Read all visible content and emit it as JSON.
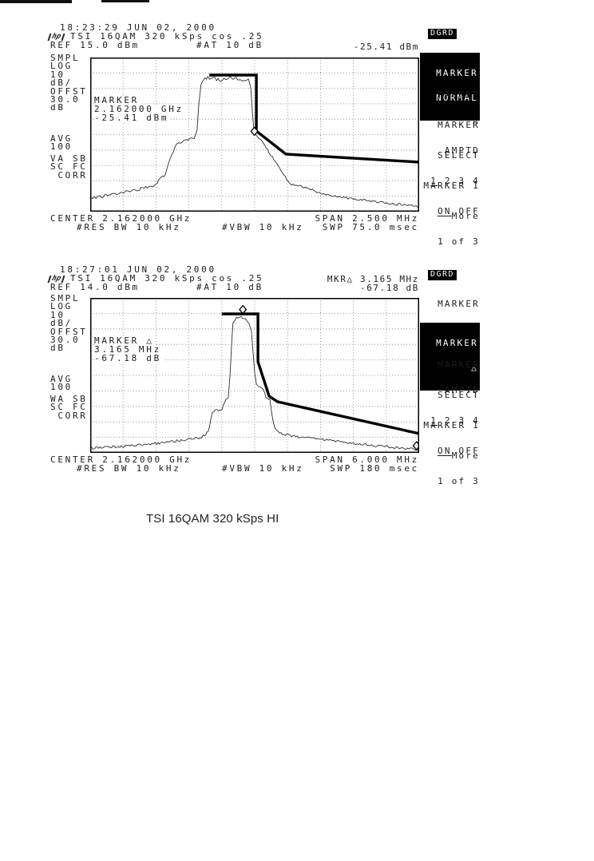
{
  "page": {
    "caption": "TSI 16QAM 320 kSps HI"
  },
  "icons": {
    "hp_logo": "hp"
  },
  "softkeys": {
    "dgrd": "DGRD",
    "k1_l1": "MARKER",
    "k1_l2": "NORMAL",
    "k2_l1": "MARKER",
    "k2_l2": "△",
    "k3_l1": "MARKER",
    "k3_l2": "AMPTD",
    "k4_l1": "SELECT",
    "k4_l2_u": "1",
    "k4_l2_r": " 2 3 4",
    "k5_l1": "MARKER 1",
    "k5_l2_u": "ON",
    "k5_l2_r": " OFF",
    "k6_l1": "More",
    "k6_l2": "1 of 3"
  },
  "charts": [
    {
      "timestamp": "18:23:29 JUN 02, 2000",
      "title": "TSI 16QAM 320 kSps cos .25",
      "ref": "REF 15.0 dBm",
      "atten": "#AT 10 dB",
      "readout1": "-25.41 dBm",
      "left_labels": {
        "g1": [
          "SMPL",
          "LOG",
          "10",
          "dB/",
          "OFFST",
          "30.0",
          "dB"
        ],
        "g2": [
          "AVG",
          "100"
        ],
        "g3": [
          "VA SB",
          "SC FC",
          " CORR"
        ]
      },
      "marker_box": [
        "MARKER",
        "2.162000 GHz",
        "-25.41 dBm"
      ],
      "footer": {
        "center": "CENTER 2.162000 GHz",
        "span": "SPAN 2.500 MHz",
        "res_bw": "#RES BW 10 kHz",
        "vbw": "#VBW 10 kHz",
        "sweep": "SWP 75.0 msec"
      }
    },
    {
      "timestamp": "18:27:01 JUN 02, 2000",
      "title": "TSI 16QAM 320 kSps cos .25",
      "ref": "REF 14.0 dBm",
      "atten": "#AT 10 dB",
      "readout1": "MKR△ 3.165 MHz",
      "readout2": "-67.18 dB",
      "left_labels": {
        "g1": [
          "SMPL",
          "LOG",
          "10",
          "dB/",
          "OFFST",
          "30.0",
          "dB"
        ],
        "g2": [
          "AVG",
          "100"
        ],
        "g3": [
          "WA SB",
          "SC FC",
          " CORR"
        ]
      },
      "marker_box": [
        "MARKER △",
        "3.165 MHz",
        "-67.18 dB"
      ],
      "footer": {
        "center": "CENTER 2.162000 GHz",
        "span": "SPAN 6.000 MHz",
        "res_bw": "#RES BW 10 kHz",
        "vbw": "#VBW 10 kHz",
        "sweep": "SWP 180 msec"
      }
    }
  ],
  "chart_data": [
    {
      "type": "line",
      "title": "TSI 16QAM 320 kSps cos .25",
      "timestamp": "18:23:29 JUN 02, 2000",
      "x_axis": {
        "center_freq": "2.162000 GHz",
        "span": "2.500 MHz",
        "res_bw": "10 kHz",
        "vbw": "10 kHz",
        "sweep": "75.0 msec"
      },
      "y_axis": {
        "ref_level_dbm": 15.0,
        "db_per_div": 10,
        "offset_db": 30.0,
        "divisions": 10
      },
      "marker": {
        "freq": "2.162000 GHz",
        "amplitude_dbm": -25.41
      },
      "grid_divs": [
        10,
        10
      ],
      "trace_pct": [
        [
          0,
          91.7,
          2
        ],
        [
          7,
          88.6,
          2
        ],
        [
          15,
          85.5,
          2
        ],
        [
          20,
          82.4,
          2
        ],
        [
          21.6,
          77.7,
          1.5
        ],
        [
          22.8,
          76.2,
          1.5
        ],
        [
          23.8,
          68.9,
          1
        ],
        [
          24.8,
          63.2,
          1.5
        ],
        [
          26.5,
          55.4,
          1.5
        ],
        [
          28.4,
          54.4,
          1.5
        ],
        [
          31.6,
          52.3,
          1.5
        ],
        [
          32.5,
          46.6,
          1
        ],
        [
          33,
          30.1,
          0.7
        ],
        [
          33.7,
          17.6,
          0.7
        ],
        [
          34.5,
          14,
          1.5
        ],
        [
          36.2,
          13,
          2.2
        ],
        [
          39.3,
          14.5,
          2.2
        ],
        [
          43,
          13,
          2.2
        ],
        [
          46.6,
          14.5,
          2.2
        ],
        [
          48.1,
          14,
          1.2
        ],
        [
          48.8,
          19.7,
          0.7
        ],
        [
          49.3,
          35.2,
          0.7
        ],
        [
          49.8,
          48.2,
          0.7
        ],
        [
          50.7,
          51.3,
          1
        ],
        [
          52.2,
          54.4,
          1
        ],
        [
          53.4,
          58.5,
          1
        ],
        [
          54.9,
          63.2,
          1
        ],
        [
          56.3,
          67.4,
          1
        ],
        [
          58,
          73.1,
          1
        ],
        [
          59.7,
          78.8,
          1.2
        ],
        [
          61.2,
          82.4,
          1.3
        ],
        [
          63.6,
          83.4,
          1.5
        ],
        [
          65,
          83.9,
          1.5
        ],
        [
          69.7,
          88.1,
          1.5
        ],
        [
          74.5,
          90.2,
          1.5
        ],
        [
          81.8,
          92.2,
          1.5
        ],
        [
          89.3,
          94.3,
          1.5
        ],
        [
          96.4,
          95.9,
          1.5
        ],
        [
          100,
          96.9,
          1.5
        ]
      ],
      "limit_line_pct": [
        [
          36.2,
          11.4
        ],
        [
          50.5,
          11.4
        ],
        [
          50.5,
          47.7
        ],
        [
          59.5,
          62.7
        ],
        [
          100,
          67.9
        ]
      ],
      "marker_points_pct": [
        [
          49.9,
          47.9
        ]
      ]
    },
    {
      "type": "line",
      "title": "TSI 16QAM 320 kSps cos .25",
      "timestamp": "18:27:01 JUN 02, 2000",
      "x_axis": {
        "center_freq": "2.162000 GHz",
        "span": "6.000 MHz",
        "res_bw": "10 kHz",
        "vbw": "10 kHz",
        "sweep": "180 msec"
      },
      "y_axis": {
        "ref_level_dbm": 14.0,
        "db_per_div": 10,
        "offset_db": 30.0,
        "divisions": 10
      },
      "marker_delta": {
        "freq": "3.165 MHz",
        "amplitude_db": -67.18
      },
      "grid_divs": [
        10,
        10
      ],
      "trace_pct": [
        [
          0,
          96.9,
          1.5
        ],
        [
          9,
          95.9,
          1.5
        ],
        [
          21,
          93.8,
          1.5
        ],
        [
          30.8,
          91.2,
          1.8
        ],
        [
          34.7,
          89.2,
          1.8
        ],
        [
          35.9,
          86.1,
          1
        ],
        [
          36.7,
          78.4,
          1
        ],
        [
          37.1,
          74.2,
          1.2
        ],
        [
          38.1,
          72.7,
          1.5
        ],
        [
          40,
          71.6,
          1.5
        ],
        [
          40.8,
          68,
          1
        ],
        [
          41.3,
          65.5,
          1.2
        ],
        [
          42,
          63.9,
          1.2
        ],
        [
          42.5,
          50,
          0.7
        ],
        [
          43,
          29.4,
          0.7
        ],
        [
          43.4,
          16,
          0.7
        ],
        [
          44.4,
          12.9,
          1
        ],
        [
          45.9,
          12.4,
          1
        ],
        [
          47.3,
          13.9,
          1
        ],
        [
          48.3,
          17,
          0.8
        ],
        [
          49,
          21.6,
          0.7
        ],
        [
          49.5,
          34.5,
          0.7
        ],
        [
          50,
          48.5,
          0.7
        ],
        [
          50.5,
          55.2,
          0.8
        ],
        [
          51.2,
          57.2,
          1
        ],
        [
          52.7,
          58.8,
          1
        ],
        [
          53.4,
          63.9,
          1
        ],
        [
          54.6,
          65.5,
          1.2
        ],
        [
          55.1,
          73.2,
          1
        ],
        [
          55.6,
          79.9,
          1
        ],
        [
          56.3,
          84.5,
          1
        ],
        [
          57.5,
          87.1,
          1.2
        ],
        [
          61.2,
          89.2,
          1.5
        ],
        [
          67.2,
          90.7,
          1.5
        ],
        [
          74.5,
          92.3,
          1.5
        ],
        [
          84.2,
          94.8,
          1.5
        ],
        [
          93.9,
          96.9,
          1.5
        ],
        [
          100,
          97.9,
          1.5
        ]
      ],
      "limit_line_pct": [
        [
          40,
          10.3
        ],
        [
          51,
          10.3
        ],
        [
          51,
          41.2
        ],
        [
          54.4,
          63.4
        ],
        [
          57,
          67
        ],
        [
          100,
          87.6
        ]
      ],
      "marker_points_pct": [
        [
          46.4,
          7.5
        ],
        [
          99.2,
          95.4
        ]
      ]
    }
  ]
}
